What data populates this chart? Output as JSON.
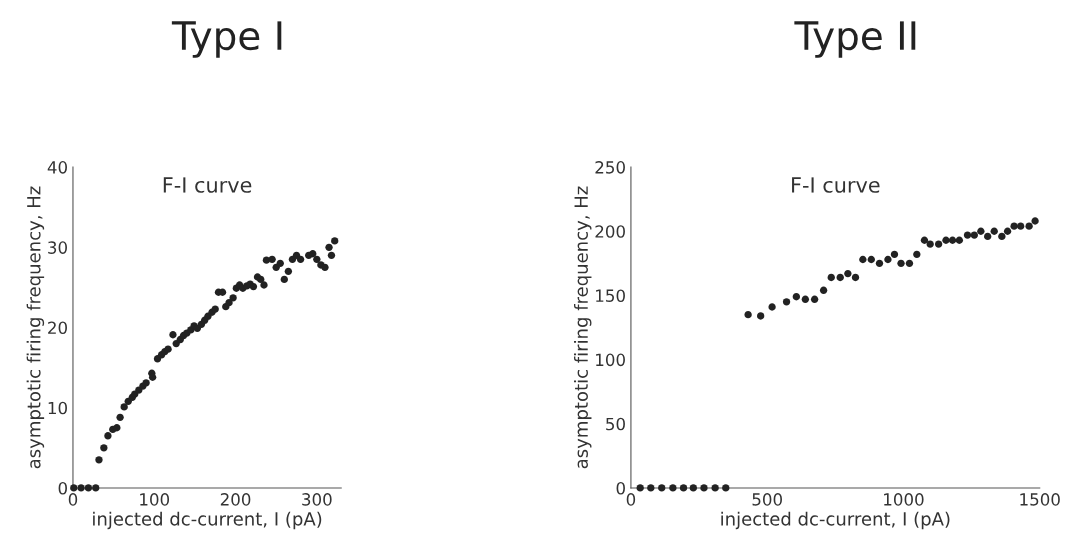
{
  "chart_data": [
    {
      "type": "scatter",
      "title": "Type I",
      "subtitle": "F-I curve",
      "xlabel": "injected dc-current, I (pA)",
      "ylabel": "asymptotic firing frequency, Hz",
      "marker": "circle",
      "grid": false,
      "xlim": [
        0,
        330
      ],
      "xticks": [
        0,
        100,
        200,
        300
      ],
      "ylim": [
        0,
        40
      ],
      "yticks": [
        0,
        10,
        20,
        30,
        40
      ],
      "series": [
        {
          "color": "#222222",
          "x": [
            1,
            10,
            19,
            28,
            32,
            38,
            43,
            49,
            54,
            58,
            63,
            68,
            73,
            76,
            81,
            86,
            90,
            97,
            98,
            104,
            109,
            113,
            117,
            123,
            127,
            132,
            136,
            140,
            145,
            149,
            153,
            158,
            162,
            166,
            171,
            175,
            179,
            184,
            188,
            192,
            197,
            201,
            205,
            209,
            214,
            218,
            222,
            227,
            231,
            235,
            238,
            245,
            250,
            255,
            260,
            265,
            270,
            275,
            280,
            290,
            295,
            300,
            305,
            310,
            315,
            318,
            322
          ],
          "values": [
            0,
            0,
            0,
            0,
            3.5,
            5.0,
            6.5,
            7.3,
            7.5,
            8.8,
            10.1,
            10.8,
            11.3,
            11.7,
            12.2,
            12.7,
            13.1,
            14.3,
            13.8,
            16.1,
            16.6,
            17.0,
            17.3,
            19.1,
            18.0,
            18.5,
            19.0,
            19.3,
            19.7,
            20.2,
            19.9,
            20.4,
            20.9,
            21.4,
            21.9,
            22.3,
            24.4,
            24.4,
            22.6,
            23.1,
            23.7,
            24.9,
            25.3,
            24.9,
            25.2,
            25.4,
            25.1,
            26.3,
            26.0,
            25.3,
            28.4,
            28.5,
            27.5,
            28.0,
            26.0,
            27.0,
            28.5,
            29.0,
            28.5,
            29.0,
            29.2,
            28.5,
            27.8,
            27.5,
            30.0,
            29.0,
            30.8
          ]
        }
      ]
    },
    {
      "type": "scatter",
      "title": "Type II",
      "subtitle": "F-I curve",
      "xlabel": "injected dc-current, I (pA)",
      "ylabel": "asymptotic firing frequency, Hz",
      "marker": "circle",
      "grid": false,
      "xlim": [
        0,
        1500
      ],
      "xticks": [
        0,
        500,
        1000,
        1500
      ],
      "ylim": [
        0,
        250
      ],
      "yticks": [
        0,
        50,
        100,
        150,
        200,
        250
      ],
      "series": [
        {
          "color": "#222222",
          "x": [
            34,
            73,
            113,
            154,
            193,
            229,
            268,
            309,
            348,
            430,
            476,
            518,
            571,
            607,
            640,
            674,
            707,
            735,
            768,
            796,
            824,
            851,
            882,
            912,
            943,
            967,
            991,
            1022,
            1049,
            1077,
            1098,
            1129,
            1156,
            1180,
            1205,
            1235,
            1260,
            1284,
            1309,
            1333,
            1361,
            1382,
            1406,
            1430,
            1461,
            1483
          ],
          "values": [
            0,
            0,
            0,
            0,
            0,
            0,
            0,
            0,
            0,
            135,
            134,
            141,
            145,
            149,
            147,
            147,
            154,
            164,
            164,
            167,
            164,
            178,
            178,
            175,
            178,
            182,
            175,
            175,
            182,
            193,
            190,
            190,
            193,
            193,
            193,
            197,
            197,
            200,
            196,
            200,
            196,
            200,
            204,
            204,
            204,
            208
          ]
        }
      ]
    }
  ]
}
